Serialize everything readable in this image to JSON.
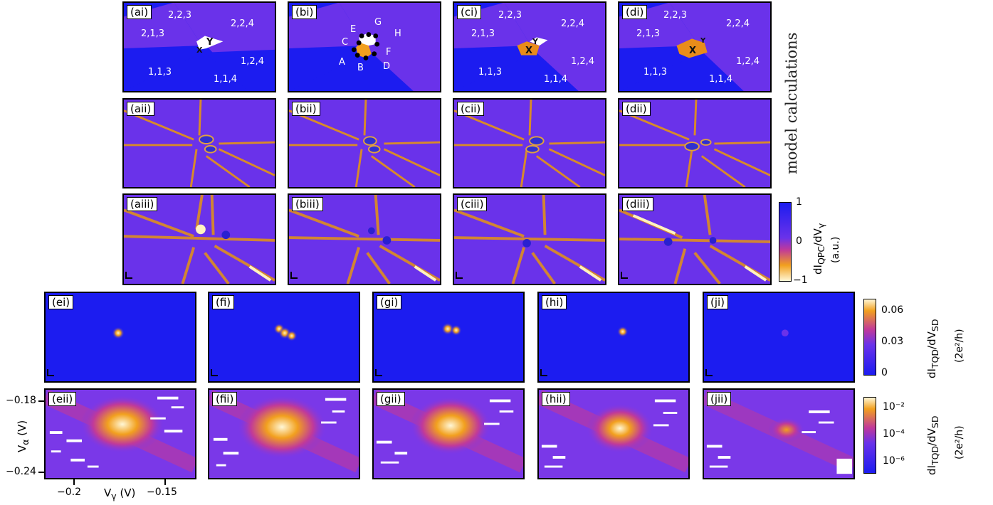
{
  "side_title": "model calculations",
  "rows": {
    "charge": {
      "panels": [
        {
          "label": "(ai)",
          "regions": [
            "2,2,3",
            "2,2,4",
            "2,1,3",
            "1,1,3",
            "1,2,4",
            "1,1,4"
          ],
          "markers": [
            "Y",
            "X"
          ]
        },
        {
          "label": "(bi)",
          "regions": [
            "E",
            "G",
            "H",
            "C",
            "F",
            "A",
            "B",
            "D"
          ],
          "markers": []
        },
        {
          "label": "(ci)",
          "regions": [
            "2,2,3",
            "2,2,4",
            "2,1,3",
            "1,1,3",
            "1,2,4",
            "1,1,4"
          ],
          "markers": [
            "Y",
            "X"
          ]
        },
        {
          "label": "(di)",
          "regions": [
            "2,2,3",
            "2,2,4",
            "2,1,3",
            "1,1,3",
            "1,2,4",
            "1,1,4"
          ],
          "markers": [
            "Y",
            "X"
          ]
        }
      ]
    },
    "qpc_model": {
      "panels": [
        {
          "label": "(aii)"
        },
        {
          "label": "(bii)"
        },
        {
          "label": "(cii)"
        },
        {
          "label": "(dii)"
        }
      ]
    },
    "qpc_data": {
      "panels": [
        {
          "label": "(aiii)"
        },
        {
          "label": "(biii)"
        },
        {
          "label": "(ciii)"
        },
        {
          "label": "(diii)"
        }
      ]
    },
    "tqd_linear": {
      "panels": [
        {
          "label": "(ei)"
        },
        {
          "label": "(fi)"
        },
        {
          "label": "(gi)"
        },
        {
          "label": "(hi)"
        },
        {
          "label": "(ji)"
        }
      ]
    },
    "tqd_log": {
      "panels": [
        {
          "label": "(eii)"
        },
        {
          "label": "(fii)"
        },
        {
          "label": "(gii)"
        },
        {
          "label": "(hii)"
        },
        {
          "label": "(jii)"
        }
      ]
    }
  },
  "colorbars": {
    "qpc": {
      "ticks": [
        "1",
        "0",
        "−1"
      ],
      "quantity": "dI",
      "quantity_sub": "QPC",
      "quantity_rest": "/dV",
      "quantity_sub2": "γ",
      "unit": "(a.u.)",
      "colors": [
        "#1c1cf0",
        "#6a32ea",
        "#c0399a",
        "#f2a01e",
        "#fff7d6"
      ]
    },
    "tqd_lin": {
      "ticks": [
        "0.06",
        "0.03",
        "0"
      ],
      "quantity": "dI",
      "quantity_sub": "TQD",
      "quantity_rest": "/dV",
      "quantity_sub2": "SD",
      "unit": "(2e²/h)",
      "colors": [
        "#1c1cf0",
        "#6a32ea",
        "#c0399a",
        "#f2a01e",
        "#fff7d6"
      ]
    },
    "tqd_log": {
      "ticks": [
        "10⁻²",
        "10⁻⁴",
        "10⁻⁶"
      ],
      "quantity": "dI",
      "quantity_sub": "TQD",
      "quantity_rest": "/dV",
      "quantity_sub2": "SD",
      "unit": "(2e²/h)",
      "colors": [
        "#1c1cf0",
        "#6a32ea",
        "#c0399a",
        "#f2a01e",
        "#fff7d6"
      ]
    }
  },
  "axes": {
    "y_ticks": [
      "−0.18",
      "−0.24"
    ],
    "y_label": "V",
    "y_label_sub": "α",
    "y_label_unit": " (V)",
    "x_ticks": [
      "−0.2",
      "−0.15"
    ],
    "x_label": "V",
    "x_label_sub": "γ",
    "x_label_unit": " (V)"
  }
}
